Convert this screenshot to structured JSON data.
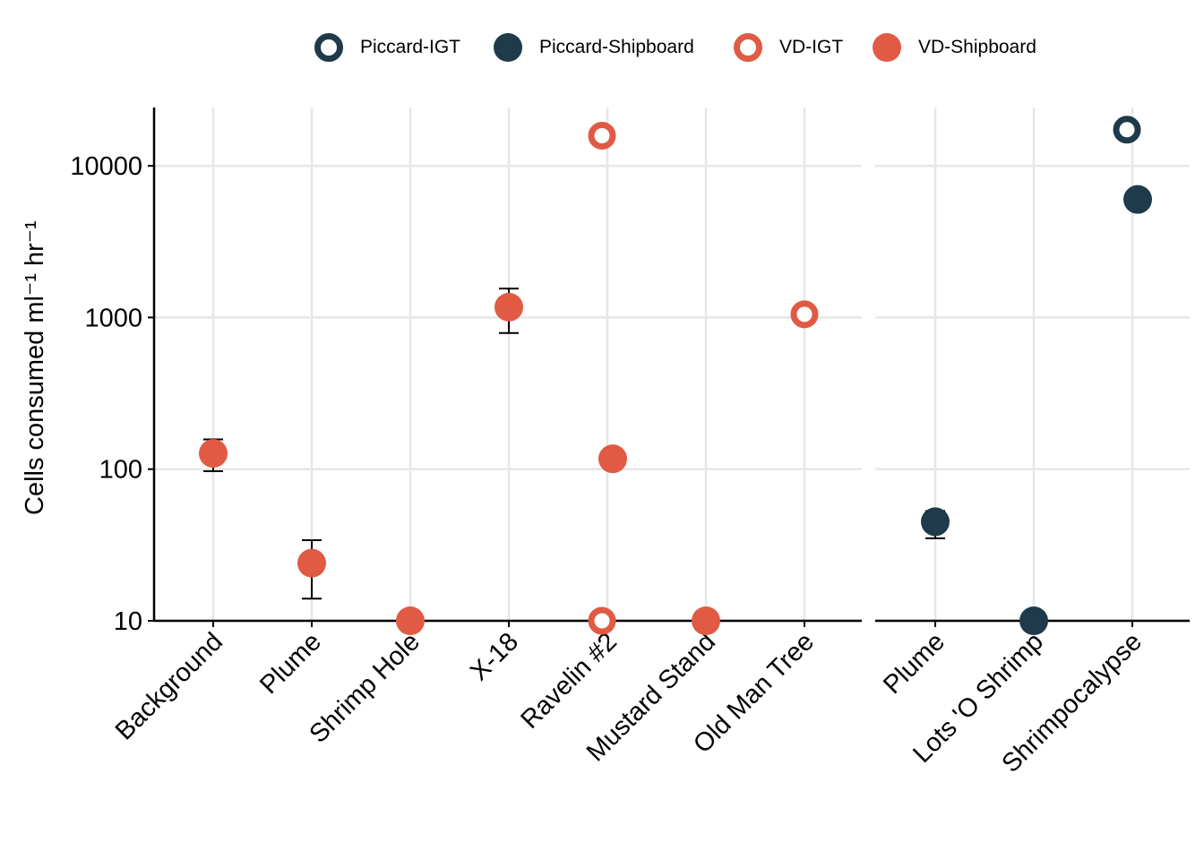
{
  "chart_data": {
    "type": "scatter",
    "y_scale": "log10",
    "ylim": [
      9.5,
      25000
    ],
    "ylabel": "Cells consumed  ml⁻¹ hr⁻¹",
    "y_ticks": [
      10,
      100,
      1000,
      10000
    ],
    "y_tick_labels": [
      "10",
      "100",
      "1000",
      "10000"
    ],
    "grid": true,
    "legend_position": "top",
    "legend": [
      {
        "name": "Piccard-IGT",
        "color": "#1f3a4a",
        "filled": false
      },
      {
        "name": "Piccard-Shipboard",
        "color": "#1f3a4a",
        "filled": true
      },
      {
        "name": "VD-IGT",
        "color": "#e05a44",
        "filled": false
      },
      {
        "name": "VD-Shipboard",
        "color": "#e05a44",
        "filled": true
      }
    ],
    "panels": [
      {
        "categories": [
          "Background",
          "Plume",
          "Shrimp Hole",
          "X-18",
          "Ravelin #2",
          "Mustard Stand",
          "Old Man Tree"
        ],
        "points": [
          {
            "category": "Background",
            "series": "VD-Shipboard",
            "y": 127,
            "err_low": 97,
            "err_high": 157
          },
          {
            "category": "Plume",
            "series": "VD-Shipboard",
            "y": 24,
            "err_low": 14,
            "err_high": 34
          },
          {
            "category": "Shrimp Hole",
            "series": "VD-Shipboard",
            "y": 10
          },
          {
            "category": "X-18",
            "series": "VD-Shipboard",
            "y": 1170,
            "err_low": 790,
            "err_high": 1550
          },
          {
            "category": "Ravelin #2",
            "series": "VD-IGT",
            "y": 15800
          },
          {
            "category": "Ravelin #2",
            "series": "VD-IGT",
            "y": 10
          },
          {
            "category": "Ravelin #2",
            "series": "VD-Shipboard",
            "y": 117
          },
          {
            "category": "Mustard Stand",
            "series": "VD-Shipboard",
            "y": 10
          },
          {
            "category": "Old Man Tree",
            "series": "VD-IGT",
            "y": 1050
          }
        ]
      },
      {
        "categories": [
          "Plume",
          "Lots 'O Shrimp",
          "Shrimpocalypse"
        ],
        "points": [
          {
            "category": "Plume",
            "series": "Piccard-Shipboard",
            "y": 45,
            "err_low": 35,
            "err_high": 53
          },
          {
            "category": "Lots 'O Shrimp",
            "series": "Piccard-Shipboard",
            "y": 10
          },
          {
            "category": "Shrimpocalypse",
            "series": "Piccard-IGT",
            "y": 17300
          },
          {
            "category": "Shrimpocalypse",
            "series": "Piccard-Shipboard",
            "y": 6000
          }
        ]
      }
    ]
  }
}
